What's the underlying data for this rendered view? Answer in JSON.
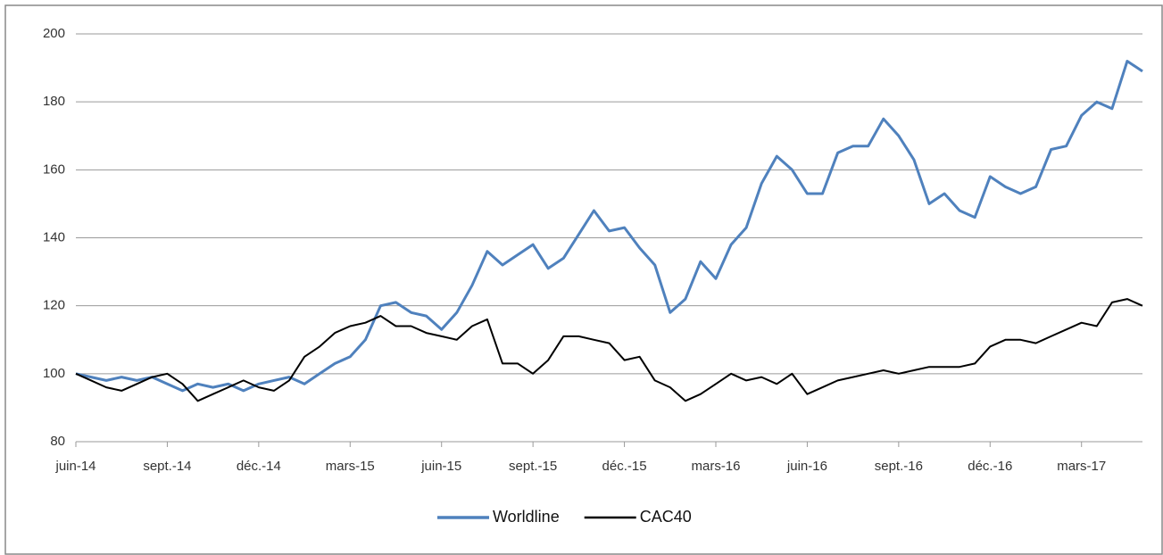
{
  "chart_data": {
    "type": "line",
    "categories": [
      "juin-14",
      null,
      null,
      null,
      null,
      null,
      "sept.-14",
      null,
      null,
      null,
      null,
      null,
      "déc.-14",
      null,
      null,
      null,
      null,
      null,
      "mars-15",
      null,
      null,
      null,
      null,
      null,
      "juin-15",
      null,
      null,
      null,
      null,
      null,
      "sept.-15",
      null,
      null,
      null,
      null,
      null,
      "déc.-15",
      null,
      null,
      null,
      null,
      null,
      "mars-16",
      null,
      null,
      null,
      null,
      null,
      "juin-16",
      null,
      null,
      null,
      null,
      null,
      "sept.-16",
      null,
      null,
      null,
      null,
      null,
      "déc.-16",
      null,
      null,
      null,
      null,
      null,
      "mars-17",
      null,
      null,
      null,
      null
    ],
    "series": [
      {
        "name": "Worldline",
        "color": "#4f81bd",
        "values": [
          100,
          99,
          98,
          99,
          98,
          99,
          97,
          95,
          97,
          96,
          97,
          95,
          97,
          98,
          99,
          97,
          100,
          103,
          105,
          110,
          120,
          121,
          118,
          117,
          113,
          118,
          126,
          136,
          132,
          135,
          138,
          131,
          134,
          141,
          148,
          142,
          143,
          137,
          132,
          118,
          122,
          133,
          128,
          138,
          143,
          156,
          164,
          160,
          153,
          153,
          165,
          167,
          167,
          175,
          170,
          163,
          150,
          153,
          148,
          146,
          158,
          155,
          153,
          155,
          166,
          167,
          176,
          180,
          178,
          192,
          189
        ]
      },
      {
        "name": "CAC40",
        "color": "#000000",
        "values": [
          100,
          98,
          96,
          95,
          97,
          99,
          100,
          97,
          92,
          94,
          96,
          98,
          96,
          95,
          98,
          105,
          108,
          112,
          114,
          115,
          117,
          114,
          114,
          112,
          111,
          110,
          114,
          116,
          103,
          103,
          100,
          104,
          111,
          111,
          110,
          109,
          104,
          105,
          98,
          96,
          92,
          94,
          97,
          100,
          98,
          99,
          97,
          100,
          94,
          96,
          98,
          99,
          100,
          101,
          100,
          101,
          102,
          102,
          102,
          103,
          108,
          110,
          110,
          109,
          111,
          113,
          115,
          114,
          121,
          122,
          120
        ]
      }
    ],
    "ylim": [
      80,
      200
    ],
    "yticks": [
      80,
      100,
      120,
      140,
      160,
      180,
      200
    ],
    "grid": true,
    "legend": "bottom"
  }
}
